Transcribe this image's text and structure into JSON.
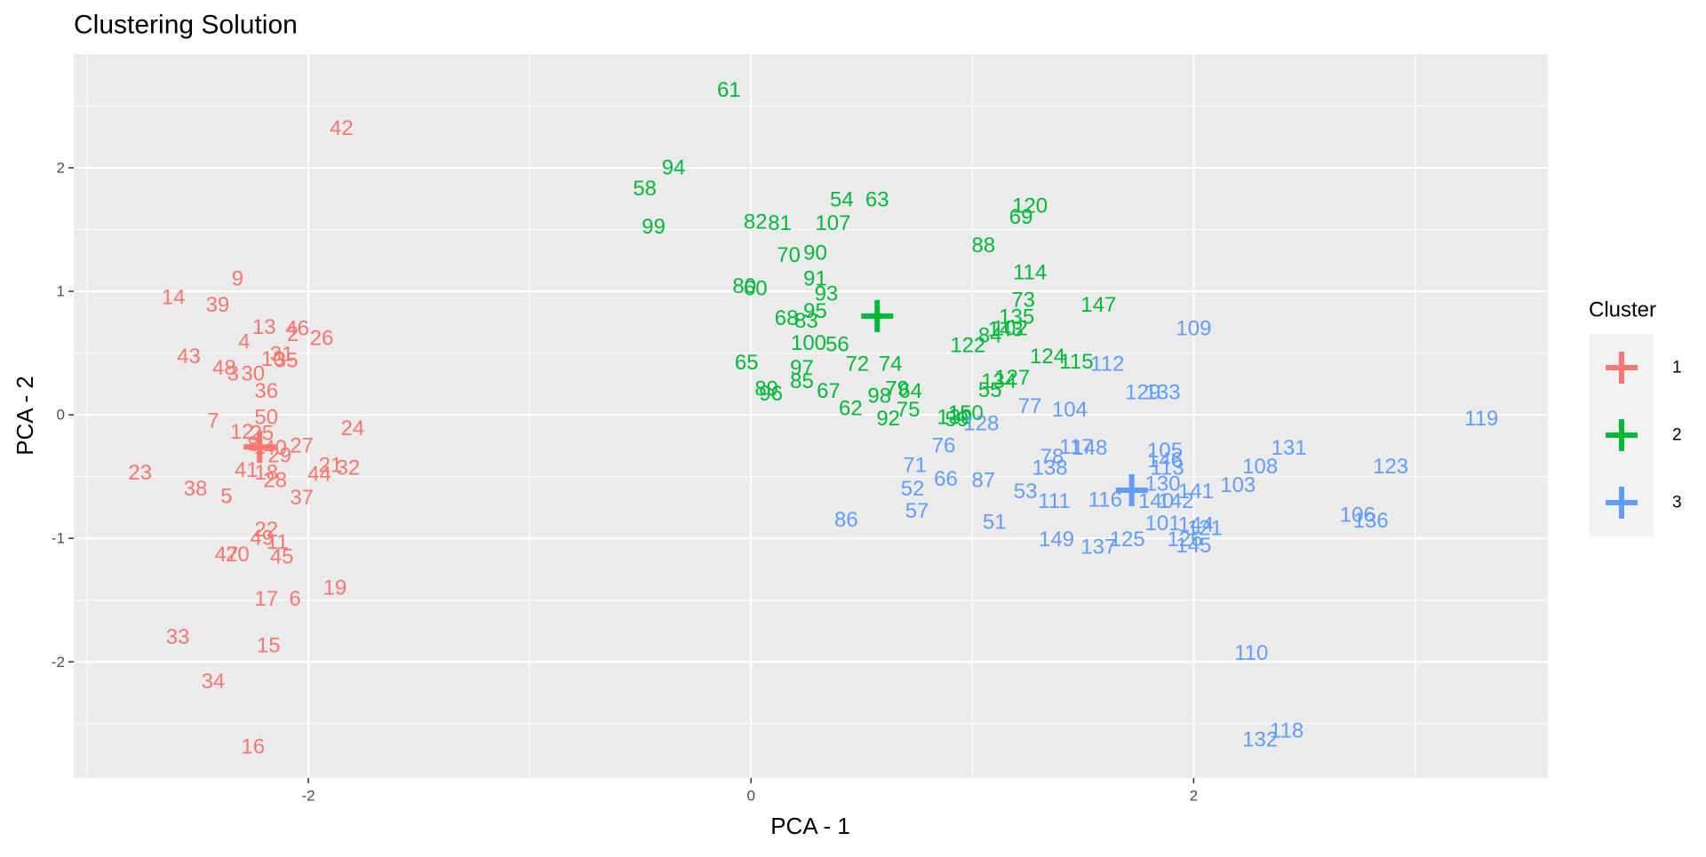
{
  "chart_data": {
    "type": "scatter",
    "title": "Clustering Solution",
    "x_label": "PCA - 1",
    "y_label": "PCA - 2",
    "xlim": [
      -3.06,
      3.6
    ],
    "ylim": [
      -2.94,
      2.92
    ],
    "xticks": [
      -2,
      0,
      2
    ],
    "yticks": [
      -2,
      -1,
      0,
      1,
      2
    ],
    "xminor": [
      -3,
      -1,
      1,
      3
    ],
    "yminor": [
      -2.5,
      -1.5,
      -0.5,
      0.5,
      1.5,
      2.5
    ],
    "grid": true,
    "legend": "right",
    "legend_title": "Cluster",
    "series": [
      {
        "name": "1",
        "color": "#F8766D",
        "labels": [
          "42",
          "9",
          "14",
          "39",
          "13",
          "46",
          "4",
          "2",
          "26",
          "43",
          "31",
          "10",
          "35",
          "48",
          "3",
          "30",
          "36",
          "7",
          "50",
          "24",
          "12",
          "25",
          "8",
          "1",
          "40",
          "29",
          "27",
          "23",
          "41",
          "18",
          "28",
          "21",
          "32",
          "44",
          "38",
          "5",
          "37",
          "22",
          "49",
          "11",
          "47",
          "20",
          "45",
          "19",
          "17",
          "6",
          "33",
          "15",
          "34",
          "16"
        ],
        "x": [
          -1.85,
          -2.32,
          -2.61,
          -2.41,
          -2.2,
          -2.05,
          -2.29,
          -2.07,
          -1.94,
          -2.54,
          -2.12,
          -2.16,
          -2.1,
          -2.38,
          -2.34,
          -2.25,
          -2.19,
          -2.43,
          -2.19,
          -1.8,
          -2.3,
          -2.21,
          -2.25,
          -2.22,
          -2.15,
          -2.13,
          -2.03,
          -2.76,
          -2.28,
          -2.19,
          -2.15,
          -1.9,
          -1.82,
          -1.95,
          -2.51,
          -2.37,
          -2.03,
          -2.19,
          -2.21,
          -2.14,
          -2.37,
          -2.32,
          -2.12,
          -1.88,
          -2.19,
          -2.06,
          -2.59,
          -2.18,
          -2.43,
          -2.25
        ],
        "y": [
          2.32,
          1.1,
          0.95,
          0.89,
          0.71,
          0.7,
          0.59,
          0.65,
          0.62,
          0.47,
          0.49,
          0.45,
          0.44,
          0.38,
          0.33,
          0.33,
          0.19,
          -0.05,
          -0.02,
          -0.11,
          -0.14,
          -0.15,
          -0.24,
          -0.26,
          -0.27,
          -0.33,
          -0.25,
          -0.47,
          -0.45,
          -0.47,
          -0.53,
          -0.41,
          -0.43,
          -0.48,
          -0.6,
          -0.66,
          -0.67,
          -0.93,
          -1.0,
          -1.03,
          -1.13,
          -1.13,
          -1.15,
          -1.4,
          -1.49,
          -1.49,
          -1.8,
          -1.87,
          -2.16,
          -2.69
        ],
        "centroid_x": -2.22,
        "centroid_y": -0.26
      },
      {
        "name": "2",
        "color": "#00BA38",
        "labels": [
          "61",
          "94",
          "58",
          "99",
          "82",
          "81",
          "54",
          "63",
          "107",
          "120",
          "69",
          "88",
          "70",
          "90",
          "114",
          "91",
          "80",
          "60",
          "93",
          "73",
          "147",
          "95",
          "68",
          "83",
          "135",
          "102",
          "84",
          "143",
          "122",
          "124",
          "115",
          "100",
          "56",
          "65",
          "72",
          "74",
          "97",
          "134",
          "127",
          "55",
          "85",
          "89",
          "96",
          "67",
          "79",
          "64",
          "98",
          "75",
          "62",
          "92",
          "150",
          "139",
          "59"
        ],
        "x": [
          -0.1,
          -0.35,
          -0.48,
          -0.44,
          0.02,
          0.13,
          0.41,
          0.57,
          0.37,
          1.26,
          1.22,
          1.05,
          0.17,
          0.29,
          1.26,
          0.29,
          -0.03,
          0.02,
          0.34,
          1.23,
          1.57,
          0.29,
          0.16,
          0.25,
          1.2,
          1.17,
          1.08,
          1.15,
          0.98,
          1.34,
          1.47,
          0.26,
          0.39,
          -0.02,
          0.48,
          0.63,
          0.23,
          1.12,
          1.18,
          1.08,
          0.23,
          0.07,
          0.09,
          0.35,
          0.66,
          0.72,
          0.58,
          0.71,
          0.45,
          0.62,
          0.97,
          0.92,
          0.93
        ],
        "y": [
          2.63,
          2.0,
          1.83,
          1.52,
          1.56,
          1.55,
          1.74,
          1.74,
          1.55,
          1.69,
          1.6,
          1.37,
          1.29,
          1.31,
          1.15,
          1.1,
          1.04,
          1.02,
          0.98,
          0.93,
          0.89,
          0.84,
          0.78,
          0.76,
          0.79,
          0.7,
          0.64,
          0.69,
          0.56,
          0.47,
          0.43,
          0.58,
          0.57,
          0.42,
          0.41,
          0.41,
          0.38,
          0.27,
          0.3,
          0.2,
          0.27,
          0.21,
          0.17,
          0.19,
          0.21,
          0.19,
          0.15,
          0.04,
          0.05,
          -0.03,
          0.01,
          -0.02,
          -0.04
        ],
        "centroid_x": 0.57,
        "centroid_y": 0.8
      },
      {
        "name": "3",
        "color": "#619CFF",
        "labels": [
          "109",
          "112",
          "129",
          "133",
          "119",
          "77",
          "104",
          "128",
          "76",
          "117",
          "148",
          "78",
          "138",
          "105",
          "146",
          "113",
          "131",
          "108",
          "123",
          "71",
          "66",
          "87",
          "52",
          "53",
          "130",
          "111",
          "116",
          "140",
          "142",
          "141",
          "103",
          "57",
          "86",
          "51",
          "106",
          "136",
          "101",
          "144",
          "121",
          "149",
          "125",
          "137",
          "126",
          "145",
          "110",
          "132",
          "118"
        ],
        "x": [
          2.0,
          1.61,
          1.77,
          1.86,
          3.3,
          1.26,
          1.44,
          1.04,
          0.87,
          1.47,
          1.53,
          1.36,
          1.35,
          1.87,
          1.87,
          1.88,
          2.43,
          2.3,
          2.89,
          0.74,
          0.88,
          1.05,
          0.73,
          1.24,
          1.86,
          1.37,
          1.6,
          1.83,
          1.92,
          2.01,
          2.2,
          0.75,
          0.43,
          1.1,
          2.74,
          2.8,
          1.86,
          2.01,
          2.05,
          1.38,
          1.7,
          1.57,
          1.96,
          2.0,
          2.26,
          2.3,
          2.42
        ],
        "y": [
          0.7,
          0.41,
          0.18,
          0.18,
          -0.03,
          0.07,
          0.04,
          -0.07,
          -0.25,
          -0.26,
          -0.27,
          -0.34,
          -0.43,
          -0.29,
          -0.37,
          -0.43,
          -0.27,
          -0.42,
          -0.42,
          -0.41,
          -0.52,
          -0.53,
          -0.6,
          -0.62,
          -0.56,
          -0.7,
          -0.69,
          -0.7,
          -0.7,
          -0.62,
          -0.57,
          -0.78,
          -0.85,
          -0.87,
          -0.81,
          -0.86,
          -0.88,
          -0.89,
          -0.92,
          -1.01,
          -1.01,
          -1.07,
          -1.01,
          -1.06,
          -1.93,
          -2.63,
          -2.56
        ],
        "centroid_x": 1.72,
        "centroid_y": -0.61
      }
    ]
  }
}
